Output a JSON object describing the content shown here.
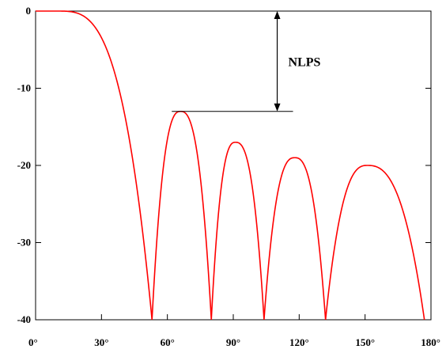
{
  "chart_data": {
    "type": "line",
    "title": "",
    "xlabel": "",
    "ylabel": "",
    "xlim": [
      0,
      180
    ],
    "ylim": [
      -40,
      0
    ],
    "grid": false,
    "x_ticks": [
      {
        "value": 0,
        "label": "0°"
      },
      {
        "value": 30,
        "label": "30°"
      },
      {
        "value": 60,
        "label": "60°"
      },
      {
        "value": 90,
        "label": "90°"
      },
      {
        "value": 120,
        "label": "120°"
      },
      {
        "value": 150,
        "label": "150°"
      },
      {
        "value": 180,
        "label": "180°"
      }
    ],
    "y_ticks": [
      {
        "value": 0,
        "label": "0"
      },
      {
        "value": -10,
        "label": "-10"
      },
      {
        "value": -20,
        "label": "-20"
      },
      {
        "value": -30,
        "label": "-30"
      },
      {
        "value": -40,
        "label": "-40"
      }
    ],
    "series": [
      {
        "color": "#ff0000",
        "lobes": [
          {
            "start": 0,
            "end": 53,
            "peak_x": 10,
            "peak_y": 0
          },
          {
            "start": 53,
            "end": 80,
            "peak_x": 66,
            "peak_y": -13
          },
          {
            "start": 80,
            "end": 104,
            "peak_x": 91,
            "peak_y": -17
          },
          {
            "start": 104,
            "end": 132,
            "peak_x": 118,
            "peak_y": -19
          },
          {
            "start": 132,
            "end": 177,
            "peak_x": 151,
            "peak_y": -20
          }
        ]
      }
    ],
    "annotations": [
      {
        "text": "NLPS",
        "type": "double-arrow",
        "from_y": 0,
        "to_y": -13,
        "arrow_x": 110
      }
    ]
  }
}
